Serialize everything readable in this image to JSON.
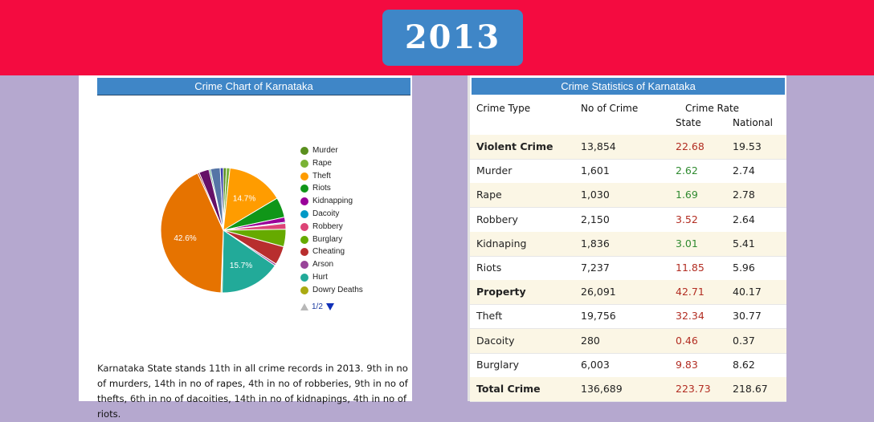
{
  "year": "2013",
  "chart_title": "Crime Chart of Karnataka",
  "pager_label": "1/2",
  "legend_items": [
    {
      "label": "Murder",
      "color": "#5a8f1e"
    },
    {
      "label": "Rape",
      "color": "#79b235"
    },
    {
      "label": "Theft",
      "color": "#ff9c00"
    },
    {
      "label": "Riots",
      "color": "#109618"
    },
    {
      "label": "Kidnapping",
      "color": "#990099"
    },
    {
      "label": "Dacoity",
      "color": "#0099c6"
    },
    {
      "label": "Robbery",
      "color": "#dd4477"
    },
    {
      "label": "Burglary",
      "color": "#66aa00"
    },
    {
      "label": "Cheating",
      "color": "#b82e2e"
    },
    {
      "label": "Arson",
      "color": "#994499"
    },
    {
      "label": "Hurt",
      "color": "#22aa99"
    },
    {
      "label": "Dowry Deaths",
      "color": "#aaaa11"
    }
  ],
  "chart_data": {
    "type": "pie",
    "title": "Crime Chart of Karnataka",
    "slices": [
      {
        "label": "Murder",
        "value": 0.8,
        "color": "#5a8f1e"
      },
      {
        "label": "Rape",
        "value": 0.9,
        "color": "#79b235"
      },
      {
        "label": "Theft",
        "value": 14.7,
        "color": "#ff9c00",
        "data_label": "14.7%"
      },
      {
        "label": "Riots",
        "value": 5.2,
        "color": "#109618"
      },
      {
        "label": "Kidnapping",
        "value": 1.3,
        "color": "#990099"
      },
      {
        "label": "Dacoity",
        "value": 0.3,
        "color": "#0099c6"
      },
      {
        "label": "Robbery",
        "value": 1.5,
        "color": "#dd4477"
      },
      {
        "label": "Burglary",
        "value": 4.5,
        "color": "#66aa00"
      },
      {
        "label": "Cheating",
        "value": 4.8,
        "color": "#b82e2e"
      },
      {
        "label": "Arson",
        "value": 0.5,
        "color": "#994499"
      },
      {
        "label": "Hurt",
        "value": 15.7,
        "color": "#22aa99",
        "data_label": "15.7%"
      },
      {
        "label": "Dowry Deaths",
        "value": 0.3,
        "color": "#aaaa11"
      },
      {
        "label": "",
        "value": 42.6,
        "color": "#e67300",
        "data_label": "42.6%"
      },
      {
        "label": "",
        "value": 0.4,
        "color": "#8b0707"
      },
      {
        "label": "",
        "value": 2.6,
        "color": "#651067"
      },
      {
        "label": "",
        "value": 0.4,
        "color": "#329262"
      },
      {
        "label": "",
        "value": 2.5,
        "color": "#5574a6"
      },
      {
        "label": "",
        "value": 0.8,
        "color": "#3b3eac"
      }
    ]
  },
  "description": {
    "p1": "Karnataka",
    "p2": " State stands ",
    "p3": "11th",
    "p4": " in all crime records in 2013. ",
    "p5": "9th",
    "p6": " in no of murders, ",
    "p7": "14th",
    "p8": " in no of rapes, ",
    "p9": "4th",
    "p10": " in no of robberies, ",
    "p11": "9th",
    "p12": " in no of thefts, ",
    "p13": "6th",
    "p14": " in no of dacoities, ",
    "p15": "14th",
    "p16": " in no of kidnapings, ",
    "p17": "4th",
    "p18": " in no of riots."
  },
  "table": {
    "title": "Crime Statistics of Karnataka",
    "headers": {
      "type": "Crime Type",
      "count": "No of Crime",
      "rate": "Crime Rate",
      "state": "State",
      "national": "National"
    },
    "rows": [
      {
        "type": "Violent Crime",
        "count": "13,854",
        "state": "22.68",
        "national": "19.53",
        "bold": true,
        "shade": true,
        "state_color": "red"
      },
      {
        "type": "Murder",
        "count": "1,601",
        "state": "2.62",
        "national": "2.74",
        "bold": false,
        "shade": false,
        "state_color": "green"
      },
      {
        "type": "Rape",
        "count": "1,030",
        "state": "1.69",
        "national": "2.78",
        "bold": false,
        "shade": true,
        "state_color": "green"
      },
      {
        "type": "Robbery",
        "count": "2,150",
        "state": "3.52",
        "national": "2.64",
        "bold": false,
        "shade": false,
        "state_color": "red"
      },
      {
        "type": "Kidnaping",
        "count": "1,836",
        "state": "3.01",
        "national": "5.41",
        "bold": false,
        "shade": true,
        "state_color": "green"
      },
      {
        "type": "Riots",
        "count": "7,237",
        "state": "11.85",
        "national": "5.96",
        "bold": false,
        "shade": false,
        "state_color": "red"
      },
      {
        "type": "Property",
        "count": "26,091",
        "state": "42.71",
        "national": "40.17",
        "bold": true,
        "shade": true,
        "state_color": "red"
      },
      {
        "type": "Theft",
        "count": "19,756",
        "state": "32.34",
        "national": "30.77",
        "bold": false,
        "shade": false,
        "state_color": "red"
      },
      {
        "type": "Dacoity",
        "count": "280",
        "state": "0.46",
        "national": "0.37",
        "bold": false,
        "shade": true,
        "state_color": "red"
      },
      {
        "type": "Burglary",
        "count": "6,003",
        "state": "9.83",
        "national": "8.62",
        "bold": false,
        "shade": false,
        "state_color": "red"
      },
      {
        "type": "Total Crime",
        "count": "136,689",
        "state": "223.73",
        "national": "218.67",
        "bold": true,
        "shade": true,
        "state_color": "red"
      }
    ]
  }
}
